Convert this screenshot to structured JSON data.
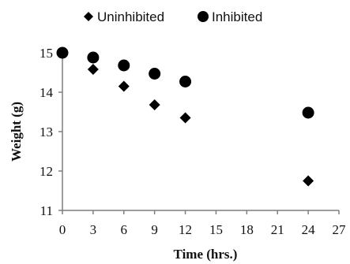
{
  "chart_data": {
    "type": "scatter",
    "title": "",
    "xlabel": "Time (hrs.)",
    "ylabel": "Weight (g)",
    "xlim": [
      0,
      27
    ],
    "ylim": [
      11,
      15
    ],
    "xticks": [
      "0",
      "3",
      "6",
      "9",
      "12",
      "15",
      "18",
      "21",
      "24",
      "27"
    ],
    "yticks": [
      "11",
      "12",
      "13",
      "14",
      "15"
    ],
    "grid": false,
    "legend_position": "top",
    "series": [
      {
        "name": "Uninhibited",
        "marker": "diamond",
        "color": "#000000",
        "points": [
          [
            0,
            15.0
          ],
          [
            3,
            14.58
          ],
          [
            6,
            14.15
          ],
          [
            9,
            13.68
          ],
          [
            12,
            13.35
          ],
          [
            24,
            11.75
          ]
        ]
      },
      {
        "name": "Inhibited",
        "marker": "circle",
        "color": "#000000",
        "points": [
          [
            0,
            15.0
          ],
          [
            3,
            14.88
          ],
          [
            6,
            14.68
          ],
          [
            9,
            14.47
          ],
          [
            12,
            14.27
          ],
          [
            24,
            13.48
          ]
        ]
      }
    ]
  }
}
